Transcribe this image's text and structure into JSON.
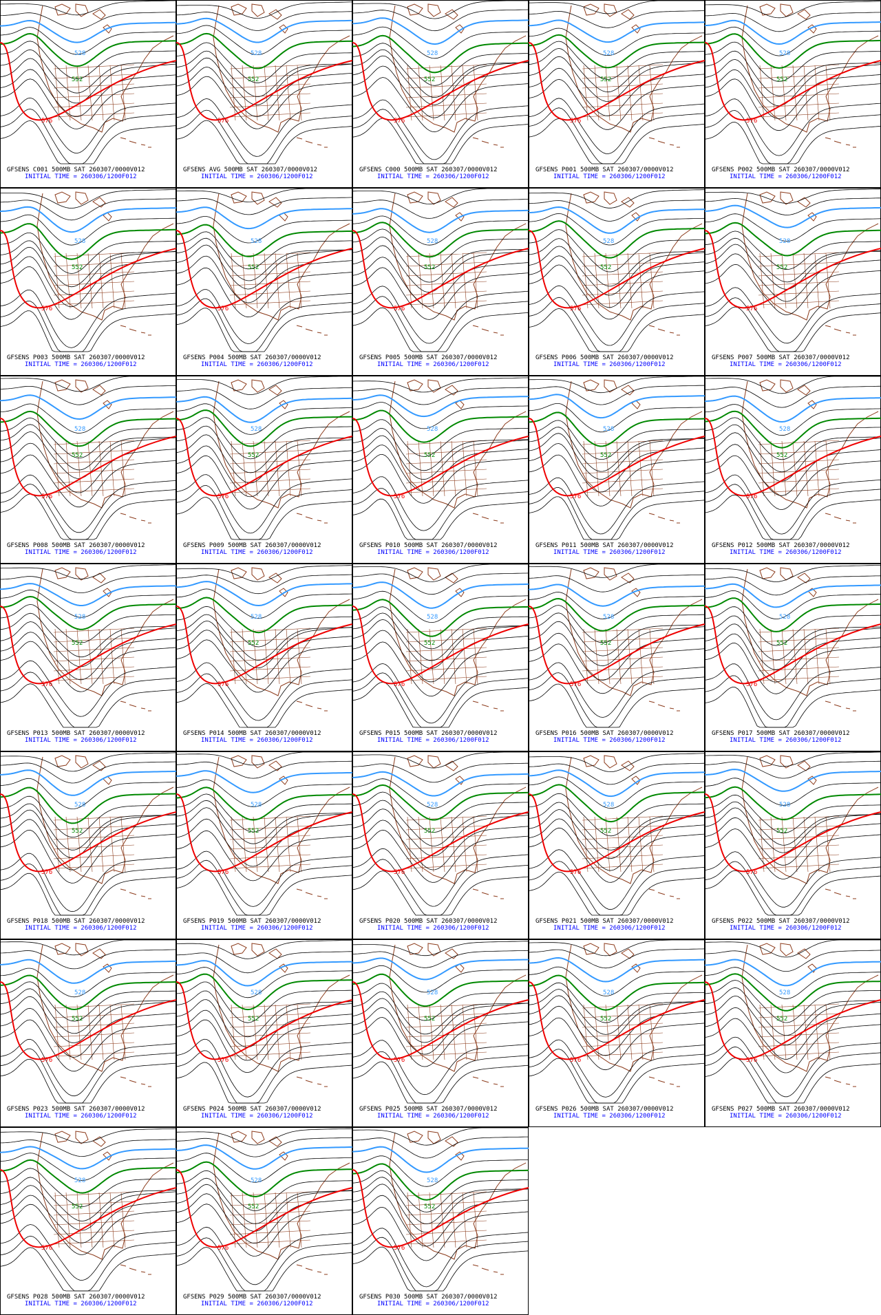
{
  "panels": [
    {
      "title": "GFSENS C001 500MB SAT 260307/0000V012",
      "subtitle": "INITIAL TIME = 260306/1200F012"
    },
    {
      "title": "GFSENS AVG 500MB SAT 260307/0000V012",
      "subtitle": "INITIAL TIME = 260306/1200F012"
    },
    {
      "title": "GFSENS C000 500MB SAT 260307/0000V012",
      "subtitle": "INITIAL TIME = 260306/1200F012"
    },
    {
      "title": "GFSENS P001 500MB SAT 260307/0000V012",
      "subtitle": "INITIAL TIME = 260306/1200F012"
    },
    {
      "title": "GFSENS P002 500MB SAT 260307/0000V012",
      "subtitle": "INITIAL TIME = 260306/1200F012"
    },
    {
      "title": "GFSENS P003 500MB SAT 260307/0000V012",
      "subtitle": "INITIAL TIME = 260306/1200F012"
    },
    {
      "title": "GFSENS P004 500MB SAT 260307/0000V012",
      "subtitle": "INITIAL TIME = 260306/1200F012"
    },
    {
      "title": "GFSENS P005 500MB SAT 260307/0000V012",
      "subtitle": "INITIAL TIME = 260306/1200F012"
    },
    {
      "title": "GFSENS P006 500MB SAT 260307/0000V012",
      "subtitle": "INITIAL TIME = 260306/1200F012"
    },
    {
      "title": "GFSENS P007 500MB SAT 260307/0000V012",
      "subtitle": "INITIAL TIME = 260306/1200F012"
    },
    {
      "title": "GFSENS P008 500MB SAT 260307/0000V012",
      "subtitle": "INITIAL TIME = 260306/1200F012"
    },
    {
      "title": "GFSENS P009 500MB SAT 260307/0000V012",
      "subtitle": "INITIAL TIME = 260306/1200F012"
    },
    {
      "title": "GFSENS P010 500MB SAT 260307/0000V012",
      "subtitle": "INITIAL TIME = 260306/1200F012"
    },
    {
      "title": "GFSENS P011 500MB SAT 260307/0000V012",
      "subtitle": "INITIAL TIME = 260306/1200F012"
    },
    {
      "title": "GFSENS P012 500MB SAT 260307/0000V012",
      "subtitle": "INITIAL TIME = 260306/1200F012"
    },
    {
      "title": "GFSENS P013 500MB SAT 260307/0000V012",
      "subtitle": "INITIAL TIME = 260306/1200F012"
    },
    {
      "title": "GFSENS P014 500MB SAT 260307/0000V012",
      "subtitle": "INITIAL TIME = 260306/1200F012"
    },
    {
      "title": "GFSENS P015 500MB SAT 260307/0000V012",
      "subtitle": "INITIAL TIME = 260306/1200F012"
    },
    {
      "title": "GFSENS P016 500MB SAT 260307/0000V012",
      "subtitle": "INITIAL TIME = 260306/1200F012"
    },
    {
      "title": "GFSENS P017 500MB SAT 260307/0000V012",
      "subtitle": "INITIAL TIME = 260306/1200F012"
    },
    {
      "title": "GFSENS P018 500MB SAT 260307/0000V012",
      "subtitle": "INITIAL TIME = 260306/1200F012"
    },
    {
      "title": "GFSENS P019 500MB SAT 260307/0000V012",
      "subtitle": "INITIAL TIME = 260306/1200F012"
    },
    {
      "title": "GFSENS P020 500MB SAT 260307/0000V012",
      "subtitle": "INITIAL TIME = 260306/1200F012"
    },
    {
      "title": "GFSENS P021 500MB SAT 260307/0000V012",
      "subtitle": "INITIAL TIME = 260306/1200F012"
    },
    {
      "title": "GFSENS P022 500MB SAT 260307/0000V012",
      "subtitle": "INITIAL TIME = 260306/1200F012"
    },
    {
      "title": "GFSENS P023 500MB SAT 260307/0000V012",
      "subtitle": "INITIAL TIME = 260306/1200F012"
    },
    {
      "title": "GFSENS P024 500MB SAT 260307/0000V012",
      "subtitle": "INITIAL TIME = 260306/1200F012"
    },
    {
      "title": "GFSENS P025 500MB SAT 260307/0000V012",
      "subtitle": "INITIAL TIME = 260306/1200F012"
    },
    {
      "title": "GFSENS P026 500MB SAT 260307/0000V012",
      "subtitle": "INITIAL TIME = 260306/1200F012"
    },
    {
      "title": "GFSENS P027 500MB SAT 260307/0000V012",
      "subtitle": "INITIAL TIME = 260306/1200F012"
    },
    {
      "title": "GFSENS P028 500MB SAT 260307/0000V012",
      "subtitle": "INITIAL TIME = 260306/1200F012"
    },
    {
      "title": "GFSENS P029 500MB SAT 260307/0000V012",
      "subtitle": "INITIAL TIME = 260306/1200F012"
    },
    {
      "title": "GFSENS P030 500MB SAT 260307/0000V012",
      "subtitle": "INITIAL TIME = 260306/1200F012"
    }
  ],
  "contour_labels": [
    "576",
    "552",
    "528"
  ]
}
